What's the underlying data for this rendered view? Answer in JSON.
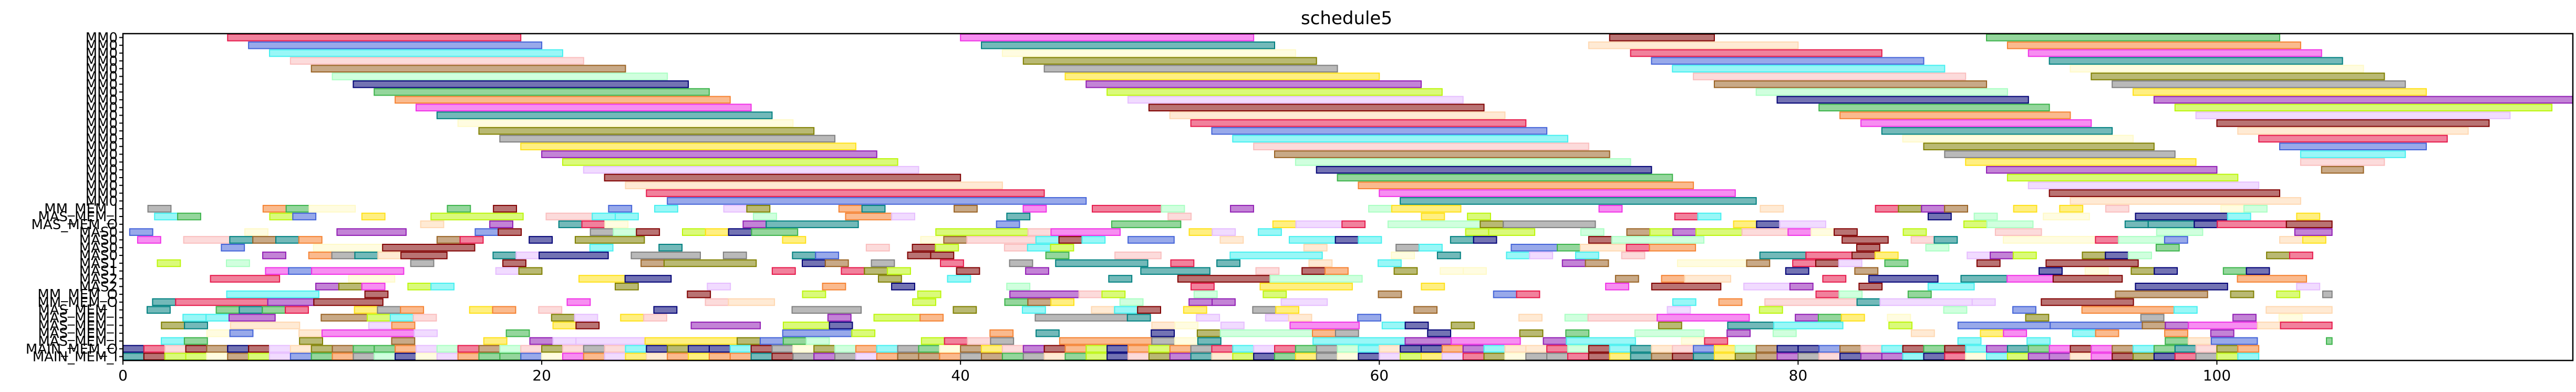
{
  "chart_data": {
    "type": "gantt",
    "title": "schedule5",
    "xlabel": "",
    "ylabel": "",
    "xlim": [
      0,
      117
    ],
    "x_ticks": [
      0,
      20,
      40,
      60,
      80,
      100
    ],
    "grid": false,
    "rows": [
      "MM0",
      "MM0",
      "MM0",
      "MM0",
      "MM0",
      "MM0",
      "MM0",
      "MM0",
      "MM0",
      "MM0",
      "MM0",
      "MM0",
      "MM0",
      "MM0",
      "MM0",
      "MM0",
      "MM0",
      "MM0",
      "MM0",
      "MM0",
      "MM0",
      "MM0",
      "MM_MEM_I",
      "MAS_MEM_I",
      "MAS_MEM_O",
      "MAS_MEM_O",
      "MAS_MEM_O",
      "MAS_MEM_O",
      "MAS_MEM_O",
      "MAS_MEM_O",
      "MAS_MEM_O",
      "MAS_MEM_O",
      "MM_MEM_O",
      "MM_MEM_O",
      "MAS_MEM_I",
      "MAS_MEM_I",
      "MAS_MEM_I",
      "MAS_MEM_I",
      "MAS_MEM_I",
      "MAS_MEM_I",
      "MAIN_MEM_O",
      "MAIN_MEM_I"
    ],
    "row_labels": [
      "MM0",
      "MM0",
      "MM0",
      "MM0",
      "MM0",
      "MM0",
      "MM0",
      "MM0",
      "MM0",
      "MM0",
      "MM0",
      "MM0",
      "MM0",
      "MM0",
      "MM0",
      "MM0",
      "MM0",
      "MM0",
      "MM0",
      "MM0",
      "MM0",
      "MM0",
      "MM_MEM_I",
      "MAS_MEM_I",
      "MAS_MEM_O",
      "MAS0",
      "MAS0",
      "MAS0",
      "MAS0",
      "MAS1",
      "MAS1",
      "MAS2",
      "MAS2",
      "MM_MEM_O",
      "MM_MEM_O",
      "MAS_MEM_I",
      "MAS_MEM_I",
      "MAS_MEM_I",
      "MAS_MEM_I",
      "MAS_MEM_I",
      "MAIN_MEM_O",
      "MAIN_MEM_I"
    ],
    "task_colors": [
      "#e6194b",
      "#3cb44b",
      "#ffe119",
      "#4363d8",
      "#f58231",
      "#911eb4",
      "#46f0f0",
      "#f032e6",
      "#bcf60c",
      "#fabebe",
      "#008080",
      "#e6beff",
      "#9a6324",
      "#fffac8",
      "#800000",
      "#aaffc3",
      "#808000",
      "#ffd8b1",
      "#000075",
      "#808080"
    ],
    "lanes": [
      [
        [
          5,
          19
        ],
        [
          40,
          54
        ],
        [
          71,
          76
        ],
        [
          89,
          103
        ]
      ],
      [
        [
          6,
          20
        ],
        [
          41,
          55
        ],
        [
          70,
          80
        ],
        [
          90,
          104
        ]
      ],
      [
        [
          7,
          21
        ],
        [
          42,
          56
        ],
        [
          72,
          84
        ],
        [
          91,
          105
        ]
      ],
      [
        [
          8,
          22
        ],
        [
          43,
          57
        ],
        [
          73,
          86
        ],
        [
          92,
          106
        ]
      ],
      [
        [
          9,
          24
        ],
        [
          44,
          58
        ],
        [
          74,
          87
        ],
        [
          93,
          107
        ]
      ],
      [
        [
          10,
          26
        ],
        [
          45,
          60
        ],
        [
          75,
          88
        ],
        [
          94,
          108
        ]
      ],
      [
        [
          11,
          27
        ],
        [
          46,
          62
        ],
        [
          76,
          89
        ],
        [
          95,
          109
        ]
      ],
      [
        [
          12,
          28
        ],
        [
          47,
          63
        ],
        [
          78,
          90
        ],
        [
          96,
          110
        ]
      ],
      [
        [
          13,
          29
        ],
        [
          48,
          64
        ],
        [
          79,
          91
        ],
        [
          97,
          117
        ]
      ],
      [
        [
          14,
          30
        ],
        [
          49,
          65
        ],
        [
          81,
          92
        ],
        [
          98,
          116
        ]
      ],
      [
        [
          15,
          31
        ],
        [
          50,
          66
        ],
        [
          82,
          93
        ],
        [
          99,
          114
        ]
      ],
      [
        [
          16,
          32
        ],
        [
          51,
          67
        ],
        [
          83,
          94
        ],
        [
          100,
          113
        ]
      ],
      [
        [
          17,
          33
        ],
        [
          52,
          68
        ],
        [
          84,
          95
        ],
        [
          101,
          112
        ]
      ],
      [
        [
          18,
          34
        ],
        [
          53,
          69
        ],
        [
          85,
          96
        ],
        [
          102,
          111
        ]
      ],
      [
        [
          19,
          35
        ],
        [
          54,
          70
        ],
        [
          86,
          97
        ],
        [
          103,
          110
        ]
      ],
      [
        [
          20,
          36
        ],
        [
          55,
          71
        ],
        [
          87,
          98
        ],
        [
          104,
          109
        ]
      ],
      [
        [
          21,
          37
        ],
        [
          56,
          72
        ],
        [
          88,
          99
        ],
        [
          104,
          108
        ]
      ],
      [
        [
          22,
          38
        ],
        [
          57,
          73
        ],
        [
          89,
          100
        ],
        [
          105,
          107
        ]
      ],
      [
        [
          23,
          40
        ],
        [
          58,
          74
        ],
        [
          90,
          101
        ]
      ],
      [
        [
          24,
          42
        ],
        [
          59,
          75
        ],
        [
          91,
          102
        ]
      ],
      [
        [
          25,
          44
        ],
        [
          60,
          77
        ],
        [
          92,
          103
        ]
      ],
      [
        [
          26,
          46
        ],
        [
          61,
          78
        ],
        [
          93,
          104
        ]
      ]
    ],
    "dense_lanes": {
      "start": 22,
      "count": 18,
      "x_min": 0,
      "x_max": 105.5,
      "task_width": 1.1,
      "density": 0.42
    },
    "bottom_lanes": {
      "start": 40,
      "count": 2,
      "x_min": 0,
      "x_max": 102,
      "task_width": 1.0,
      "density": 1.0
    }
  }
}
